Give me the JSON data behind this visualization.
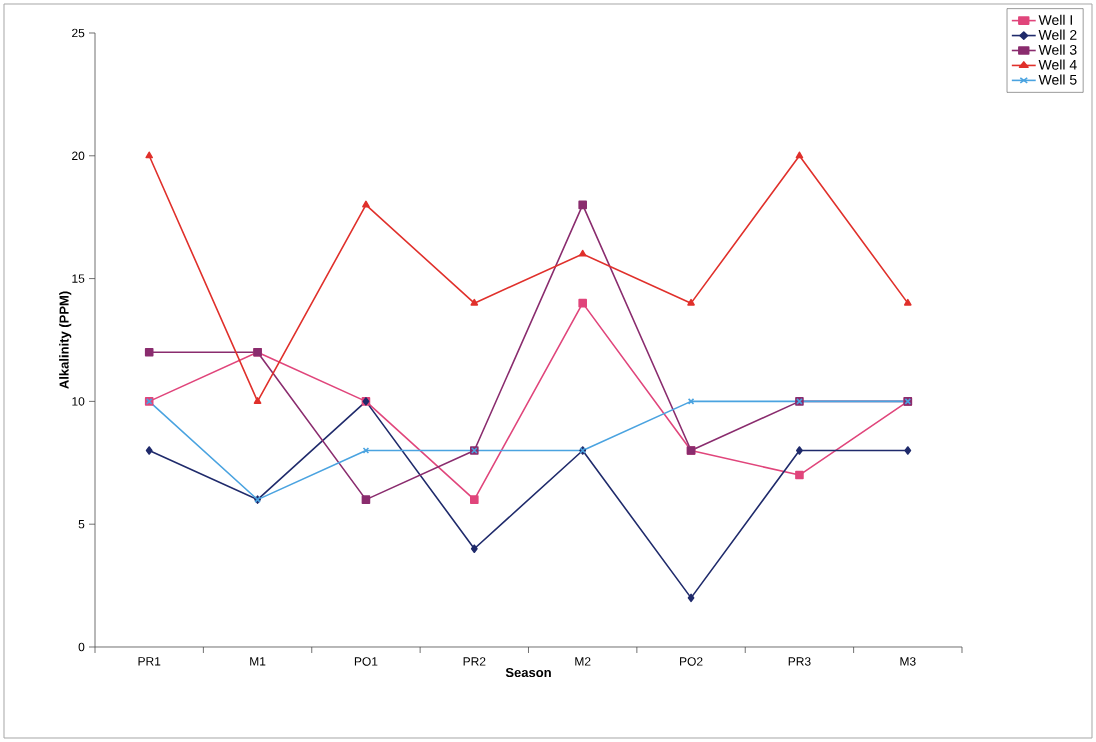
{
  "chart_data": {
    "type": "line",
    "xlabel": "Season",
    "ylabel": "Alkalinity (PPM)",
    "categories": [
      "PR1",
      "M1",
      "PO1",
      "PR2",
      "M2",
      "PO2",
      "PR3",
      "M3"
    ],
    "series": [
      {
        "name": "Well I",
        "color": "#e0457b",
        "marker": "square",
        "values": [
          10,
          12,
          10,
          6,
          14,
          8,
          7,
          10
        ]
      },
      {
        "name": "Well 2",
        "color": "#1f2a6b",
        "marker": "diamond",
        "values": [
          8,
          6,
          10,
          4,
          8,
          2,
          8,
          8
        ]
      },
      {
        "name": "Well 3",
        "color": "#8a2c6e",
        "marker": "square",
        "values": [
          12,
          12,
          6,
          8,
          18,
          8,
          10,
          10
        ]
      },
      {
        "name": "Well 4",
        "color": "#e0302b",
        "marker": "triangle",
        "values": [
          20,
          10,
          18,
          14,
          16,
          14,
          20,
          14
        ]
      },
      {
        "name": "Well 5",
        "color": "#4aa3e0",
        "marker": "cross",
        "values": [
          10,
          6,
          8,
          8,
          8,
          10,
          10,
          10
        ]
      }
    ],
    "ylim": [
      0,
      25
    ],
    "yticks": [
      0,
      5,
      10,
      15,
      20,
      25
    ],
    "grid": false,
    "legend": "top right",
    "line_style": "solid"
  }
}
